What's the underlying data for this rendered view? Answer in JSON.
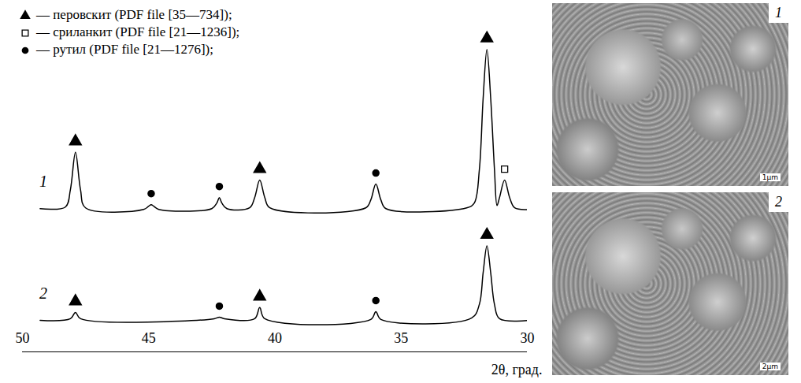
{
  "chart_data": {
    "type": "line",
    "x_label": "2θ, град.",
    "xlim": [
      50,
      30
    ],
    "xticks": [
      50,
      45,
      40,
      35,
      30
    ],
    "ylim": [
      0,
      390
    ],
    "tick_labels": "x",
    "grid": false,
    "legend": "top-left",
    "series": [
      {
        "name": "1",
        "color": "#000000",
        "x": [
          29.9,
          30.5,
          30.7,
          30.9,
          31.1,
          31.2,
          31.3,
          31.45,
          31.6,
          31.75,
          31.9,
          32.1,
          32.4,
          35.6,
          35.8,
          36.0,
          36.2,
          36.4,
          40.2,
          40.4,
          40.6,
          40.8,
          41.0,
          41.9,
          42.1,
          42.2,
          42.3,
          42.5,
          44.6,
          44.8,
          44.9,
          45.0,
          45.2,
          47.5,
          47.7,
          47.9,
          48.1,
          48.3,
          49.3
        ],
        "values": [
          150,
          152,
          165,
          187,
          165,
          155,
          200,
          290,
          352,
          290,
          200,
          158,
          152,
          151,
          162,
          182,
          162,
          152,
          152,
          165,
          187,
          165,
          152,
          151,
          158,
          165,
          158,
          151,
          150,
          154,
          156,
          154,
          150,
          152,
          175,
          222,
          175,
          153,
          151
        ]
      },
      {
        "name": "2",
        "color": "#000000",
        "x": [
          29.9,
          31.1,
          31.3,
          31.45,
          31.6,
          31.75,
          31.9,
          32.2,
          35.8,
          36.0,
          36.2,
          40.4,
          40.6,
          40.8,
          42.0,
          42.2,
          42.4,
          47.7,
          47.9,
          48.1,
          49.3
        ],
        "values": [
          10,
          12,
          30,
          70,
          104,
          70,
          30,
          13,
          11,
          21,
          11,
          12,
          26,
          12,
          12,
          14,
          12,
          12,
          20,
          12,
          10
        ]
      }
    ],
    "phases": [
      {
        "name": "перовскит",
        "label": "— перовскит (PDF file [35—734]);",
        "marker": "triangle",
        "color": "#000000"
      },
      {
        "name": "сриланкит",
        "label": "— сриланкит (PDF file [21—1236]);",
        "marker": "open-square",
        "color": "#000000"
      },
      {
        "name": "рутил",
        "label": "— рутил (PDF file [21—1276]);",
        "marker": "circle",
        "color": "#000000"
      }
    ],
    "peaks": [
      {
        "series": "1",
        "x": 47.9,
        "phase": "перовскит"
      },
      {
        "series": "1",
        "x": 44.9,
        "phase": "рутил"
      },
      {
        "series": "1",
        "x": 42.2,
        "phase": "рутил"
      },
      {
        "series": "1",
        "x": 40.6,
        "phase": "перовскит"
      },
      {
        "series": "1",
        "x": 36.0,
        "phase": "рутил"
      },
      {
        "series": "1",
        "x": 31.6,
        "phase": "перовскит"
      },
      {
        "series": "1",
        "x": 30.9,
        "phase": "сриланкит"
      },
      {
        "series": "2",
        "x": 47.9,
        "phase": "перовскит"
      },
      {
        "series": "2",
        "x": 42.2,
        "phase": "рутил"
      },
      {
        "series": "2",
        "x": 40.6,
        "phase": "перовскит"
      },
      {
        "series": "2",
        "x": 36.0,
        "phase": "рутил"
      },
      {
        "series": "2",
        "x": 31.6,
        "phase": "перовскит"
      }
    ]
  },
  "images": [
    {
      "label": "1",
      "scale_bar": "1µm"
    },
    {
      "label": "2",
      "scale_bar": "2µm"
    }
  ]
}
